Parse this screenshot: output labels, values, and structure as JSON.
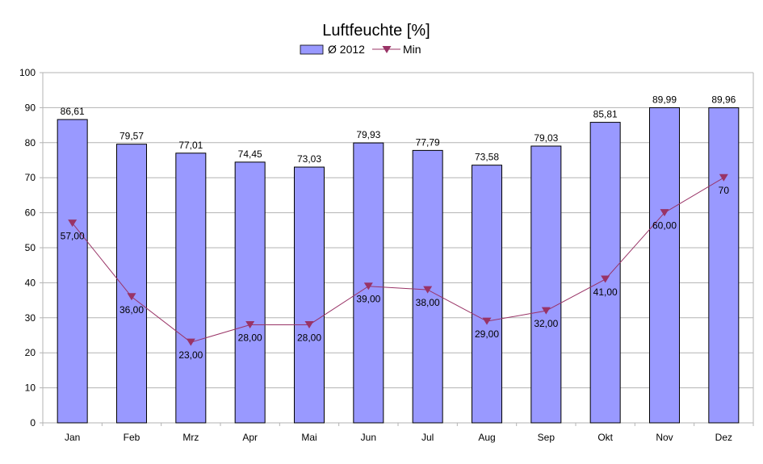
{
  "chart_data": {
    "type": "bar",
    "title": "Luftfeuchte [%]",
    "xlabel": "",
    "ylabel": "",
    "ylim": [
      0,
      100
    ],
    "yticks": [
      "0",
      "10",
      "20",
      "30",
      "40",
      "50",
      "60",
      "70",
      "80",
      "90",
      "100"
    ],
    "grid": true,
    "legend_position": "top",
    "categories": [
      "Jan",
      "Feb",
      "Mrz",
      "Apr",
      "Mai",
      "Jun",
      "Jul",
      "Aug",
      "Sep",
      "Okt",
      "Nov",
      "Dez"
    ],
    "series": [
      {
        "name": "Ø 2012",
        "type": "bar",
        "color": "#9999ff",
        "values": [
          86.61,
          79.57,
          77.01,
          74.45,
          73.03,
          79.93,
          77.79,
          73.58,
          79.03,
          85.81,
          89.99,
          89.96
        ],
        "labels": [
          "86,61",
          "79,57",
          "77,01",
          "74,45",
          "73,03",
          "79,93",
          "77,79",
          "73,58",
          "79,03",
          "85,81",
          "89,99",
          "89,96"
        ]
      },
      {
        "name": "Min",
        "type": "line",
        "color": "#993366",
        "marker": "triangle-down",
        "values": [
          57,
          36,
          23,
          28,
          28,
          39,
          38,
          29,
          32,
          41,
          60,
          70
        ],
        "labels": [
          "57,00",
          "36,00",
          "23,00",
          "28,00",
          "28,00",
          "39,00",
          "38,00",
          "29,00",
          "32,00",
          "41,00",
          "60,00",
          "70"
        ]
      }
    ]
  }
}
